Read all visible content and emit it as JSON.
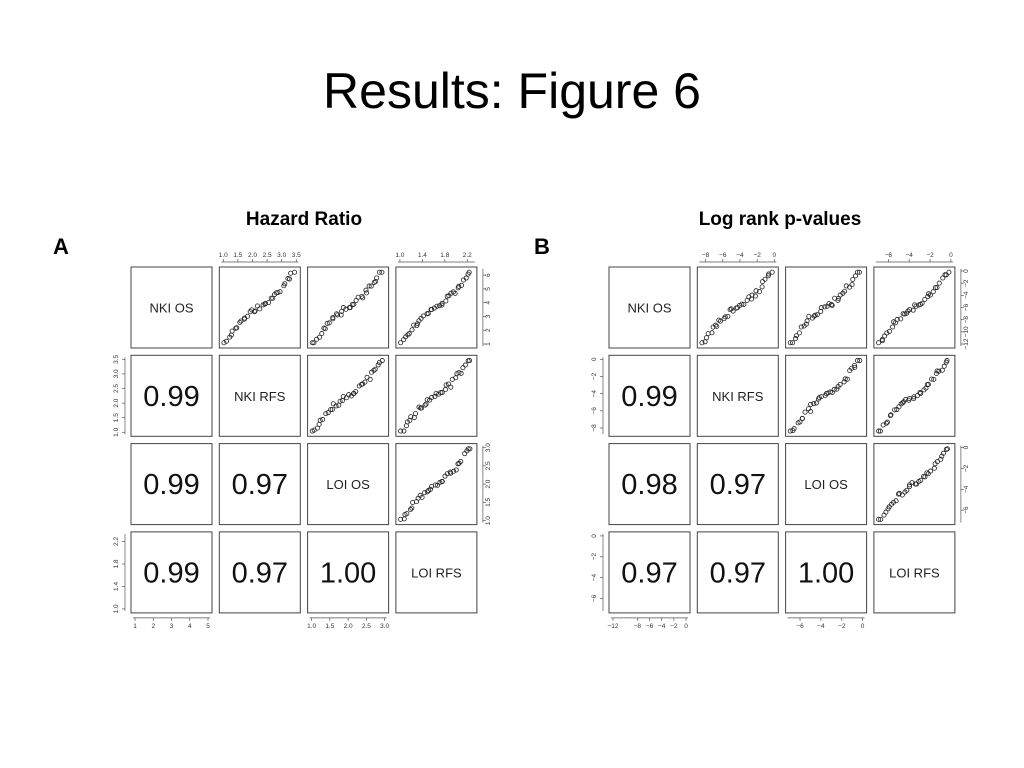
{
  "slide": {
    "title": "Results: Figure 6"
  },
  "panels": {
    "a": {
      "title": "Hazard Ratio",
      "letter": "A"
    },
    "b": {
      "title": "Log rank p-values",
      "letter": "B"
    }
  },
  "chart_data": [
    {
      "type": "scatter",
      "title": "Hazard Ratio",
      "panel": "A",
      "variables": [
        "NKI OS",
        "NKI RFS",
        "LOI OS",
        "LOI RFS"
      ],
      "correlations": [
        {
          "row": 1,
          "col": 0,
          "value": "0.99"
        },
        {
          "row": 2,
          "col": 0,
          "value": "0.99"
        },
        {
          "row": 2,
          "col": 1,
          "value": "0.97"
        },
        {
          "row": 3,
          "col": 0,
          "value": "0.99"
        },
        {
          "row": 3,
          "col": 1,
          "value": "0.97"
        },
        {
          "row": 3,
          "col": 2,
          "value": "1.00"
        }
      ],
      "axes": [
        {
          "var": "NKI OS",
          "ticks": [
            "1",
            "2",
            "3",
            "4",
            "5"
          ],
          "range": [
            1,
            5
          ]
        },
        {
          "var": "NKI RFS",
          "ticks": [
            "1.0",
            "1.5",
            "2.0",
            "2.5",
            "3.0",
            "3.5"
          ],
          "range": [
            1.0,
            3.5
          ]
        },
        {
          "var": "LOI OS",
          "ticks": [
            "1.0",
            "1.5",
            "2.0",
            "2.5",
            "3.0"
          ],
          "range": [
            1.0,
            3.0
          ]
        },
        {
          "var": "LOI RFS",
          "ticks": [
            "1.0",
            "1.4",
            "1.8",
            "2.2"
          ],
          "range": [
            1.0,
            2.3
          ]
        }
      ],
      "tick_placement": {
        "top": [
          {
            "col": 1,
            "var": 1
          },
          {
            "col": 3,
            "var": 3
          }
        ],
        "bottom": [
          {
            "col": 0,
            "var": 0
          },
          {
            "col": 2,
            "var": 2
          }
        ],
        "left": [
          {
            "row": 1,
            "var": 1
          },
          {
            "row": 3,
            "var": 3
          }
        ],
        "right": [
          {
            "row": 0,
            "var": 0
          },
          {
            "row": 2,
            "var": 2
          }
        ]
      },
      "right_axis_ticks_row0": [
        "1",
        "2",
        "3",
        "4",
        "5",
        "6"
      ],
      "right_axis_range_row0": [
        1,
        6.3
      ]
    },
    {
      "type": "scatter",
      "title": "Log rank p-values",
      "panel": "B",
      "variables": [
        "NKI OS",
        "NKI RFS",
        "LOI OS",
        "LOI RFS"
      ],
      "correlations": [
        {
          "row": 1,
          "col": 0,
          "value": "0.99"
        },
        {
          "row": 2,
          "col": 0,
          "value": "0.98"
        },
        {
          "row": 2,
          "col": 1,
          "value": "0.97"
        },
        {
          "row": 3,
          "col": 0,
          "value": "0.97"
        },
        {
          "row": 3,
          "col": 1,
          "value": "0.97"
        },
        {
          "row": 3,
          "col": 2,
          "value": "1.00"
        }
      ],
      "axes": [
        {
          "var": "NKI OS",
          "ticks": [
            "−12",
            "−8",
            "−6",
            "−4",
            "−2",
            "0"
          ],
          "range": [
            -12,
            0
          ]
        },
        {
          "var": "NKI RFS",
          "ticks": [
            "−8",
            "−6",
            "−4",
            "−2",
            "0"
          ],
          "range": [
            -8.5,
            0
          ]
        },
        {
          "var": "LOI OS",
          "ticks": [
            "−6",
            "−4",
            "−2",
            "0"
          ],
          "range": [
            -7,
            0
          ]
        },
        {
          "var": "LOI RFS",
          "ticks": [
            "−6",
            "−4",
            "−2",
            "0"
          ],
          "range": [
            -7,
            0
          ]
        }
      ],
      "left_axis_ticks": {
        "row1": [
          "0",
          "−2",
          "−4",
          "−6",
          "−8"
        ],
        "row3": [
          "0",
          "−2",
          "−4",
          "−6"
        ]
      },
      "right_axis_ticks": {
        "row0": [
          "0",
          "−2",
          "−4",
          "−6",
          "−8",
          "−10",
          "−12"
        ],
        "row2": [
          "0",
          "−2",
          "−4",
          "−6"
        ]
      }
    }
  ]
}
